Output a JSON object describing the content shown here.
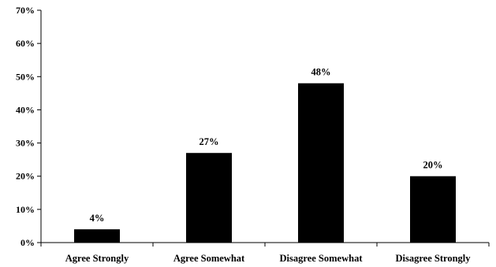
{
  "chart_data": {
    "type": "bar",
    "categories": [
      "Agree Strongly",
      "Agree Somewhat",
      "Disagree Somewhat",
      "Disagree Strongly"
    ],
    "values": [
      4,
      27,
      48,
      20
    ],
    "data_labels": [
      "4%",
      "27%",
      "48%",
      "20%"
    ],
    "y_ticks": [
      "0%",
      "10%",
      "20%",
      "30%",
      "40%",
      "50%",
      "60%",
      "70%"
    ],
    "ylim": [
      0,
      70
    ],
    "grid": false,
    "legend": "none",
    "bar_color": "#000000",
    "title": "",
    "xlabel": "",
    "ylabel": ""
  }
}
